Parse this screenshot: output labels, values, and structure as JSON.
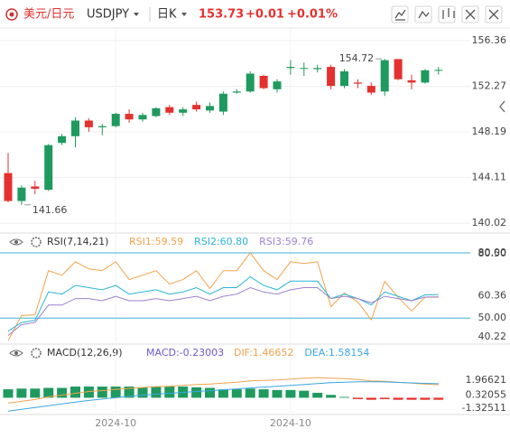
{
  "header": {
    "pair": "美元/日元",
    "symbol": "USDJPY",
    "period": "日K",
    "price": "153.73",
    "change": "+0.01",
    "change_pct": "+0.01%"
  },
  "chart_data": [
    {
      "type": "candlestick",
      "categories": [
        null,
        null,
        null,
        null,
        null,
        null,
        null,
        null,
        "2024-10",
        null,
        null,
        null,
        null,
        null,
        null,
        null,
        null,
        null,
        null,
        null,
        null,
        "2024-10",
        null,
        null,
        null,
        null,
        null,
        null,
        null,
        null,
        null,
        null,
        null
      ],
      "open": [
        144.5,
        142.0,
        143.3,
        143.0,
        147.2,
        147.8,
        149.2,
        148.6,
        148.7,
        149.8,
        149.3,
        149.6,
        150.4,
        149.9,
        150.6,
        150.1,
        150.0,
        151.7,
        151.8,
        153.2,
        152.0,
        153.9,
        153.9,
        153.8,
        154.0,
        152.3,
        152.6,
        152.3,
        151.8,
        154.7,
        152.8,
        152.6,
        153.72
      ],
      "high": [
        146.3,
        143.4,
        143.8,
        147.1,
        148.0,
        149.5,
        149.4,
        148.9,
        149.9,
        150.2,
        149.9,
        150.4,
        150.6,
        150.4,
        150.9,
        150.8,
        151.8,
        152.0,
        153.6,
        153.3,
        152.9,
        154.6,
        154.4,
        154.2,
        154.2,
        153.8,
        152.9,
        152.6,
        154.72,
        154.7,
        153.3,
        153.8,
        154.0
      ],
      "low": [
        141.9,
        141.66,
        142.6,
        142.9,
        147.0,
        146.8,
        148.2,
        147.9,
        148.6,
        149.0,
        149.1,
        149.5,
        149.7,
        149.6,
        150.0,
        149.9,
        149.7,
        151.6,
        151.7,
        152.0,
        151.7,
        153.3,
        153.2,
        153.5,
        152.0,
        152.1,
        152.1,
        151.5,
        151.4,
        152.8,
        152.0,
        152.5,
        153.3
      ],
      "close": [
        142.0,
        143.2,
        143.1,
        147.0,
        147.8,
        149.2,
        148.6,
        148.7,
        149.8,
        149.3,
        149.7,
        150.3,
        149.9,
        150.2,
        150.2,
        150.5,
        151.6,
        151.8,
        153.4,
        152.1,
        152.7,
        154.0,
        153.9,
        153.9,
        152.3,
        153.6,
        152.5,
        151.7,
        154.6,
        152.9,
        152.6,
        153.7,
        153.73
      ],
      "up_color": "#1f9a5e",
      "down_color": "#e4312f",
      "ylim": [
        139.3,
        157.4
      ],
      "yticks": [
        156.36,
        152.27,
        148.19,
        144.11,
        140.02
      ],
      "grid": true
    },
    {
      "type": "line",
      "title": "RSI(7,14,21)",
      "series": [
        {
          "name": "RSI1:59.59",
          "color": "#f4a24c",
          "values": [
            39.7,
            51.2,
            51.5,
            71.8,
            69.7,
            75.9,
            72.6,
            71.8,
            75.9,
            67.7,
            69.7,
            71.8,
            65.6,
            67.7,
            71.8,
            63.6,
            71.8,
            71.8,
            80.0,
            71.8,
            67.7,
            75.9,
            75.1,
            75.9,
            55.3,
            61.5,
            57.4,
            49.2,
            66.9,
            59.5,
            53.3,
            59.6,
            59.59
          ]
        },
        {
          "name": "RSI2:60.80",
          "color": "#2ab4d8",
          "values": [
            44,
            48,
            49,
            62,
            61,
            65,
            64,
            63,
            65,
            61,
            62,
            63,
            61,
            62,
            64,
            61,
            64,
            64,
            69,
            65,
            63,
            67,
            67,
            67,
            59,
            61,
            59,
            56,
            62,
            60,
            58,
            60.7,
            60.8
          ]
        },
        {
          "name": "RSI3:59.76",
          "color": "#9a82cf",
          "values": [
            42,
            47,
            48,
            56,
            56,
            59,
            59,
            58,
            60,
            58,
            58,
            59,
            58,
            59,
            60,
            58,
            60,
            61,
            64,
            62,
            61,
            63,
            64,
            64,
            59,
            60,
            59,
            57,
            60,
            59,
            58,
            59.7,
            59.76
          ]
        }
      ],
      "reference_lines": [
        {
          "value": 80,
          "label": "80.00"
        },
        {
          "value": 50,
          "label": "50.00"
        }
      ],
      "reference_color": "#3cb4d8",
      "ylim": [
        38.9,
        82.05
      ],
      "yticks": [
        {
          "value": 80.5,
          "label": "80.50"
        },
        60.36,
        40.22
      ]
    },
    {
      "type": "macd",
      "title": "MACD(12,26,9)",
      "histogram": {
        "name": "MACD:-0.23003",
        "color": "#6f58c9",
        "up_color": "#1f9a5e",
        "down_color": "#e4312f",
        "values": [
          0.95,
          1.03,
          1.03,
          1.11,
          1.11,
          1.26,
          1.26,
          1.26,
          1.26,
          1.26,
          1.18,
          1.26,
          1.26,
          1.26,
          1.18,
          1.11,
          0.95,
          0.95,
          1.03,
          0.95,
          0.87,
          0.87,
          0.79,
          0.56,
          0.32,
          0.09,
          -0.15,
          -0.23,
          -0.15,
          -0.23,
          -0.23,
          -0.23,
          -0.23003
        ]
      },
      "series": [
        {
          "name": "DIF:1.46652",
          "color": "#f0a24e",
          "values": [
            -0.6,
            -0.4,
            -0.2,
            0.1,
            0.3,
            0.5,
            0.7,
            0.8,
            0.95,
            1.05,
            1.15,
            1.25,
            1.3,
            1.4,
            1.5,
            1.55,
            1.65,
            1.75,
            1.9,
            1.95,
            2.0,
            2.1,
            2.2,
            2.25,
            2.2,
            2.15,
            2.05,
            1.9,
            1.85,
            1.75,
            1.65,
            1.55,
            1.46652
          ]
        },
        {
          "name": "DEA:1.58154",
          "color": "#3aa6e6",
          "values": [
            -1.5,
            -1.3,
            -1.1,
            -0.9,
            -0.7,
            -0.5,
            -0.3,
            -0.15,
            0.0,
            0.15,
            0.3,
            0.4,
            0.5,
            0.6,
            0.7,
            0.8,
            0.9,
            1.0,
            1.1,
            1.2,
            1.3,
            1.4,
            1.5,
            1.6,
            1.7,
            1.75,
            1.8,
            1.8,
            1.78,
            1.72,
            1.67,
            1.62,
            1.58154
          ]
        }
      ],
      "ylim": [
        -1.79,
        4.32
      ],
      "yticks": [
        1.96621,
        0.32055,
        -1.32511
      ]
    }
  ]
}
